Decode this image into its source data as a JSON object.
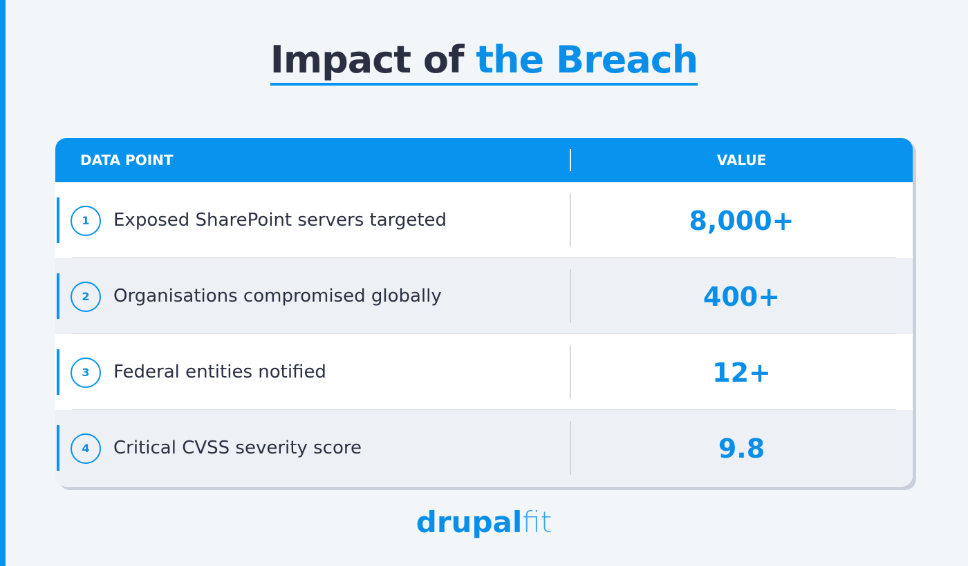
{
  "header": {
    "title_part1": "Impact of ",
    "title_part2": "the Breach"
  },
  "table": {
    "columns": [
      "DATA POINT",
      "VALUE"
    ],
    "rows": [
      {
        "number": "1",
        "label": "Exposed SharePoint servers targeted",
        "value": "8,000+"
      },
      {
        "number": "2",
        "label": "Organisations compromised globally",
        "value": "400+"
      },
      {
        "number": "3",
        "label": "Federal entities notified",
        "value": "12+"
      },
      {
        "number": "4",
        "label": "Critical CVSS severity score",
        "value": "9.8"
      }
    ]
  },
  "footer": {
    "logo_part1": "drupal",
    "logo_part2": "fit"
  }
}
